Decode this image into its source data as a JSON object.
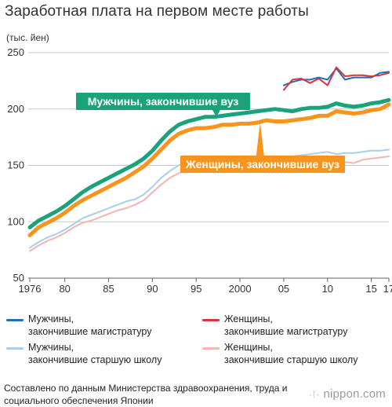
{
  "title": "Заработная плата на первом месте работы",
  "unit": "(тыс. йен)",
  "source": "Составлено по данным Министерства здравоохранения, труда и социального обеспечения Японии",
  "logo": "nippon.com",
  "chart_data": {
    "type": "line",
    "title": "Заработная плата на первом месте работы",
    "ylabel": "(тыс. йен)",
    "xlabel": "",
    "ylim": [
      50,
      250
    ],
    "xlim": [
      1976,
      2017
    ],
    "y_ticks": [
      50,
      100,
      150,
      200,
      250
    ],
    "x_ticks": [
      {
        "value": 1976,
        "label": "1976"
      },
      {
        "value": 1980,
        "label": "80"
      },
      {
        "value": 1985,
        "label": "85"
      },
      {
        "value": 1990,
        "label": "90"
      },
      {
        "value": 1995,
        "label": "95"
      },
      {
        "value": 2000,
        "label": "2000"
      },
      {
        "value": 2005,
        "label": "05"
      },
      {
        "value": 2010,
        "label": "10"
      },
      {
        "value": 2015,
        "label": "15"
      },
      {
        "value": 2017,
        "label": "17"
      }
    ],
    "grid": "horizontal",
    "legend_position": "bottom",
    "series": [
      {
        "name": "Мужчины, закончившие магистратуру",
        "color": "#1f6fb8",
        "width": 2,
        "x": [
          2005,
          2006,
          2007,
          2008,
          2009,
          2010,
          2011,
          2012,
          2013,
          2014,
          2015,
          2016,
          2017
        ],
        "values": [
          221,
          224,
          226,
          226,
          228,
          226,
          236,
          226,
          228,
          228,
          228,
          232,
          233
        ]
      },
      {
        "name": "Женщины, закончившие магистратуру",
        "color": "#d9343b",
        "width": 2,
        "x": [
          2005,
          2006,
          2007,
          2008,
          2009,
          2010,
          2011,
          2012,
          2013,
          2014,
          2015,
          2016,
          2017
        ],
        "values": [
          217,
          226,
          227,
          223,
          227,
          221,
          237,
          229,
          230,
          230,
          229,
          230,
          232
        ]
      },
      {
        "name": "Мужчины, закончившие старшую школу",
        "color": "#a9cfe8",
        "width": 2,
        "x": [
          1976,
          1977,
          1978,
          1979,
          1980,
          1981,
          1982,
          1983,
          1984,
          1985,
          1986,
          1987,
          1988,
          1989,
          1990,
          1991,
          1992,
          1993,
          1994,
          1995,
          1996,
          1997,
          1998,
          1999,
          2000,
          2001,
          2002,
          2003,
          2004,
          2005,
          2006,
          2007,
          2008,
          2009,
          2010,
          2011,
          2012,
          2013,
          2014,
          2015,
          2016,
          2017
        ],
        "values": [
          77,
          82,
          86,
          89,
          93,
          98,
          103,
          106,
          109,
          112,
          115,
          118,
          120,
          124,
          131,
          139,
          145,
          150,
          154,
          154,
          155,
          155,
          156,
          157,
          157,
          158,
          158,
          157,
          158,
          156,
          158,
          159,
          160,
          161,
          162,
          160,
          161,
          161,
          162,
          163,
          163,
          164
        ]
      },
      {
        "name": "Женщины, закончившие старшую школу",
        "color": "#f2b5b2",
        "width": 2,
        "x": [
          1976,
          1977,
          1978,
          1979,
          1980,
          1981,
          1982,
          1983,
          1984,
          1985,
          1986,
          1987,
          1988,
          1989,
          1990,
          1991,
          1992,
          1993,
          1994,
          1995,
          1996,
          1997,
          1998,
          1999,
          2000,
          2001,
          2002,
          2003,
          2004,
          2005,
          2006,
          2007,
          2008,
          2009,
          2010,
          2011,
          2012,
          2013,
          2014,
          2015,
          2016,
          2017
        ],
        "values": [
          74,
          79,
          83,
          86,
          90,
          95,
          99,
          101,
          104,
          107,
          110,
          112,
          115,
          119,
          126,
          133,
          139,
          143,
          146,
          145,
          146,
          147,
          148,
          148,
          148,
          149,
          149,
          147,
          148,
          148,
          150,
          152,
          154,
          153,
          154,
          152,
          153,
          152,
          155,
          156,
          157,
          158
        ]
      },
      {
        "name": "Мужчины, закончившие вуз",
        "color": "#1aa37a",
        "width": 5,
        "x": [
          1976,
          1977,
          1978,
          1979,
          1980,
          1981,
          1982,
          1983,
          1984,
          1985,
          1986,
          1987,
          1988,
          1989,
          1990,
          1991,
          1992,
          1993,
          1994,
          1995,
          1996,
          1997,
          1998,
          1999,
          2000,
          2001,
          2002,
          2003,
          2004,
          2005,
          2006,
          2007,
          2008,
          2009,
          2010,
          2011,
          2012,
          2013,
          2014,
          2015,
          2016,
          2017
        ],
        "values": [
          95,
          101,
          105,
          109,
          114,
          120,
          126,
          131,
          135,
          139,
          143,
          147,
          151,
          156,
          163,
          172,
          180,
          186,
          189,
          191,
          193,
          193,
          194,
          195,
          196,
          197,
          198,
          199,
          200,
          199,
          198,
          200,
          201,
          201,
          202,
          205,
          203,
          202,
          203,
          205,
          206,
          208
        ]
      },
      {
        "name": "Женщины, закончившие вуз",
        "color": "#f7941d",
        "width": 5,
        "x": [
          1976,
          1977,
          1978,
          1979,
          1980,
          1981,
          1982,
          1983,
          1984,
          1985,
          1986,
          1987,
          1988,
          1989,
          1990,
          1991,
          1992,
          1993,
          1994,
          1995,
          1996,
          1997,
          1998,
          1999,
          2000,
          2001,
          2002,
          2003,
          2004,
          2005,
          2006,
          2007,
          2008,
          2009,
          2010,
          2011,
          2012,
          2013,
          2014,
          2015,
          2016,
          2017
        ],
        "values": [
          88,
          95,
          99,
          103,
          108,
          114,
          119,
          123,
          127,
          131,
          135,
          139,
          144,
          149,
          156,
          164,
          172,
          178,
          181,
          183,
          183,
          184,
          186,
          186,
          187,
          187,
          188,
          190,
          189,
          189,
          190,
          191,
          192,
          194,
          194,
          198,
          197,
          196,
          197,
          199,
          200,
          204
        ]
      }
    ],
    "callouts": [
      {
        "series": "Мужчины, закончившие вуз",
        "text": "Мужчины, закончившие вуз",
        "bg": "#1aa37a",
        "anchor_x": 1997.3
      },
      {
        "series": "Женщины, закончившие вуз",
        "text": "Женщины, закончившие вуз",
        "bg": "#f7941d",
        "anchor_x": 2002.3
      }
    ]
  },
  "legend": [
    {
      "label": "Мужчины,\nзакончившие магистратуру",
      "color": "#1f6fb8"
    },
    {
      "label": "Женщины,\nзакончившие магистратуру",
      "color": "#d9343b"
    },
    {
      "label": "Мужчины,\nзакончившие старшую школу",
      "color": "#a9cfe8"
    },
    {
      "label": "Женщины,\nзакончившие старшую школу",
      "color": "#f2b5b2"
    }
  ]
}
